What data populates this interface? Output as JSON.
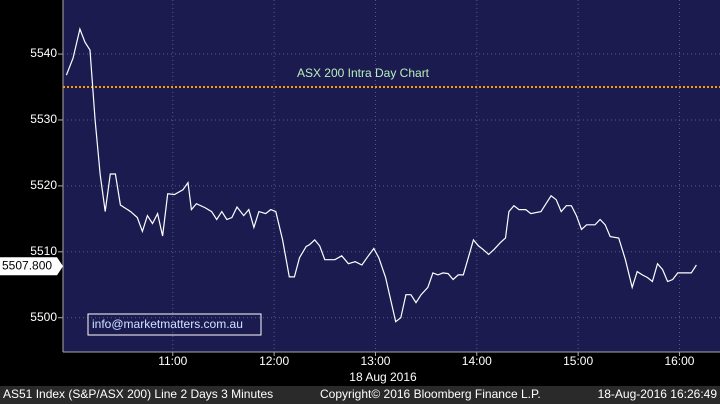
{
  "chart_data": {
    "type": "line",
    "title": "ASX 200 Intra Day Chart",
    "x_label": "18 Aug 2016",
    "x": [
      597,
      601,
      605,
      608,
      611,
      614,
      617,
      620,
      623,
      626,
      629,
      635,
      639,
      642,
      645,
      648,
      651,
      654,
      657,
      661,
      666,
      669,
      671,
      674,
      679,
      683,
      686,
      689,
      692,
      695,
      698,
      702,
      705,
      708,
      711,
      715,
      718,
      721,
      725,
      729,
      732,
      735,
      739,
      741,
      744,
      747,
      750,
      756,
      760,
      764,
      768,
      772,
      775,
      779,
      782,
      786,
      789,
      792,
      795,
      798,
      801,
      804,
      807,
      811,
      814,
      817,
      820,
      823,
      826,
      829,
      832,
      835,
      838,
      841,
      844,
      847,
      850,
      854,
      857,
      859,
      862,
      865,
      869,
      872,
      878,
      881,
      884,
      887,
      890,
      893,
      896,
      899,
      902,
      905,
      910,
      913,
      916,
      919,
      924,
      928,
      932,
      935,
      938,
      941,
      944,
      947,
      950,
      953,
      956,
      959,
      967,
      970
    ],
    "values": [
      5536.8,
      5539.4,
      5543.8,
      5541.8,
      5540.6,
      5530,
      5521.7,
      5516.1,
      5521.8,
      5521.8,
      5517.1,
      5516.1,
      5515.2,
      5513.1,
      5515.5,
      5514.3,
      5515.8,
      5512.4,
      5518.8,
      5518.7,
      5519.4,
      5520.5,
      5516.4,
      5517.3,
      5516.7,
      5516.1,
      5514.9,
      5516.1,
      5514.9,
      5515.2,
      5516.8,
      5515.5,
      5516.4,
      5513.7,
      5516.1,
      5515.8,
      5516.4,
      5516.1,
      5511.8,
      5506.2,
      5506.2,
      5509.1,
      5510.8,
      5511.1,
      5511.8,
      5510.9,
      5508.8,
      5508.8,
      5509.4,
      5508.2,
      5508.5,
      5508,
      5509.1,
      5510.5,
      5509.1,
      5506.1,
      5502.7,
      5499.4,
      5500,
      5503.5,
      5503.5,
      5502.3,
      5503.5,
      5504.6,
      5506.8,
      5506.5,
      5506.8,
      5506.7,
      5505.8,
      5506.5,
      5506.5,
      5509.1,
      5511.8,
      5510.9,
      5510.3,
      5509.6,
      5510.3,
      5511.4,
      5512.1,
      5516.1,
      5517,
      5516.4,
      5516.4,
      5515.8,
      5516.1,
      5517.3,
      5518.5,
      5517.9,
      5516.1,
      5517,
      5517,
      5515.5,
      5513.4,
      5514.1,
      5514.1,
      5514.9,
      5514.1,
      5512.3,
      5512.1,
      5508.8,
      5504.6,
      5507,
      5506.5,
      5506.1,
      5505.5,
      5508.2,
      5507.3,
      5505.5,
      5505.8,
      5506.8,
      5506.8,
      5508
    ],
    "color": "#ffffff",
    "xlim": [
      595,
      984
    ],
    "xticks": [
      {
        "value": 660,
        "label": "11:00"
      },
      {
        "value": 720,
        "label": "12:00"
      },
      {
        "value": 780,
        "label": "13:00"
      },
      {
        "value": 840,
        "label": "14:00"
      },
      {
        "value": 900,
        "label": "15:00"
      },
      {
        "value": 960,
        "label": "16:00"
      }
    ],
    "ylim": [
      5494.8,
      5548.2
    ],
    "yticks": [
      5500,
      5510,
      5520,
      5530,
      5540
    ],
    "grid": true,
    "reference_line": {
      "value": 5535,
      "color": "#ff9900"
    },
    "last_price": {
      "value": 5507.8,
      "label": "5507.800"
    },
    "watermark": "info@marketmatters.com.au",
    "footer": {
      "left": "AS51 Index (S&P/ASX 200) Line 2 Days 3 Minutes",
      "center": "Copyright© 2016 Bloomberg Finance L.P.",
      "right": "18-Aug-2016 16:26:49"
    }
  }
}
